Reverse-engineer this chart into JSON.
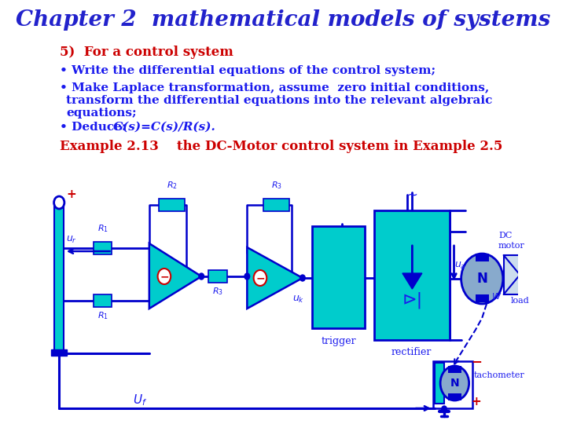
{
  "bg_color": "#ffffff",
  "title": "Chapter 2  mathematical models of systems",
  "title_color": "#2222cc",
  "title_fontsize": 20,
  "item5_color": "#cc0000",
  "item5_text": "5)  For a control system",
  "item5_fontsize": 12,
  "bullet_color": "#1a1aee",
  "bullet_fontsize": 11,
  "example_color": "#cc0000",
  "example_text": "Example 2.13    the DC-Motor control system in Example 2.5",
  "example_fontsize": 12,
  "diagram_color": "#0000cc",
  "cyan_fill": "#00cccc",
  "red": "#cc0000",
  "dblue": "#1a1aee",
  "green_circle": "#44aa88"
}
